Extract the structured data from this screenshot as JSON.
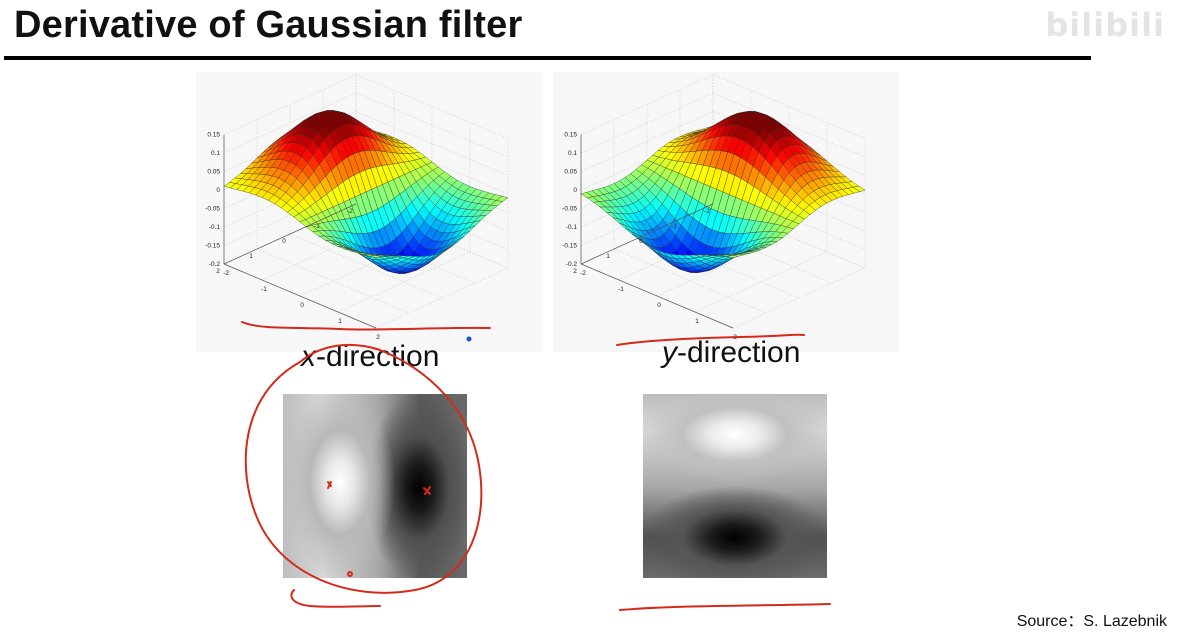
{
  "slide": {
    "title": "Derivative of Gaussian filter",
    "watermark": "bilibili",
    "source": "Source：S. Lazebnik"
  },
  "panels": [
    {
      "caption_var": "x",
      "caption_rest": "-direction",
      "z_ticks": [
        "0.15",
        "0.1",
        "0.05",
        "0",
        "-0.05",
        "-0.1",
        "-0.15",
        "-0.2"
      ],
      "y_ticks": [
        "2",
        "1",
        "0",
        "-1",
        "-2"
      ],
      "x_ticks": [
        "-2",
        "-1",
        "0",
        "1",
        "2"
      ]
    },
    {
      "caption_var": "y",
      "caption_rest": "-direction",
      "z_ticks": [
        "0.15",
        "0.1",
        "0.05",
        "0",
        "-0.05",
        "-0.1",
        "-0.15",
        "-0.2"
      ],
      "y_ticks": [
        "2",
        "1",
        "0",
        "-1",
        "-2"
      ],
      "x_ticks": [
        "-2",
        "-1",
        "0",
        "1",
        "2"
      ]
    }
  ],
  "colors": {
    "surface_colormap": "jet",
    "annotation_ink": "#d42a1a",
    "title_rule": "#000000"
  }
}
